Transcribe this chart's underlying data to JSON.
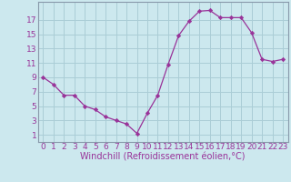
{
  "x": [
    0,
    1,
    2,
    3,
    4,
    5,
    6,
    7,
    8,
    9,
    10,
    11,
    12,
    13,
    14,
    15,
    16,
    17,
    18,
    19,
    20,
    21,
    22,
    23
  ],
  "y": [
    9,
    8,
    6.5,
    6.5,
    5,
    4.5,
    3.5,
    3,
    2.5,
    1.2,
    4,
    6.5,
    10.8,
    14.8,
    16.8,
    18.2,
    18.3,
    17.3,
    17.3,
    17.3,
    15.2,
    11.5,
    11.2,
    11.5
  ],
  "line_color": "#993399",
  "marker": "D",
  "marker_size": 2.2,
  "bg_color": "#cce8ee",
  "grid_color": "#aacdd6",
  "xlabel": "Windchill (Refroidissement éolien,°C)",
  "ylabel_ticks": [
    1,
    3,
    5,
    7,
    9,
    11,
    13,
    15,
    17
  ],
  "xtick_labels": [
    "0",
    "1",
    "2",
    "3",
    "4",
    "5",
    "6",
    "7",
    "8",
    "9",
    "10",
    "11",
    "12",
    "13",
    "14",
    "15",
    "16",
    "17",
    "18",
    "19",
    "20",
    "21",
    "22",
    "23"
  ],
  "ylim": [
    0,
    19.5
  ],
  "xlim": [
    -0.5,
    23.5
  ],
  "tick_color": "#993399",
  "tick_fontsize": 6.5,
  "xlabel_fontsize": 7.0,
  "spine_color": "#8899aa"
}
